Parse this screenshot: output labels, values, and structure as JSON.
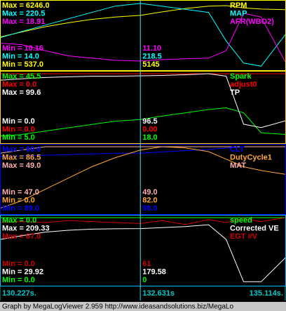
{
  "chart_data": [
    {
      "type": "line",
      "border_color": "#ffff00",
      "x": [
        130.227,
        130.6,
        131.0,
        131.4,
        131.8,
        132.2,
        132.631,
        133.0,
        133.4,
        133.8,
        134.1,
        134.4,
        134.7,
        135.114
      ],
      "series": [
        {
          "name": "RPM",
          "color": "#ffff00",
          "max": 6246.0,
          "min": 537.0,
          "max_label": "Max = 6246.0",
          "min_label": "Min = 537.0",
          "cursor_label": "5145",
          "values": [
            3250,
            3700,
            4150,
            4500,
            4800,
            5000,
            5145,
            5450,
            5750,
            5950,
            6000,
            5800,
            5700,
            5650
          ]
        },
        {
          "name": "MAP",
          "color": "#00ffff",
          "max": 220.5,
          "min": 14.0,
          "max_label": "Max = 220.5",
          "min_label": "Min = 14.0",
          "cursor_label": "218.5",
          "values": [
            110,
            130,
            150,
            170,
            190,
            210,
            218.5,
            210,
            200,
            190,
            100,
            30,
            20,
            120
          ]
        },
        {
          "name": "AFR(WBO2)",
          "color": "#ff00ff",
          "max": 18.91,
          "min": 10.16,
          "max_label": "Max = 18.91",
          "min_label": "Min = 10.16",
          "cursor_label": "11.10",
          "values": [
            13.5,
            13.3,
            12.5,
            11.8,
            11.5,
            11.2,
            11.1,
            11.3,
            11.4,
            11.5,
            12.5,
            17.5,
            17.0,
            11.0
          ]
        }
      ]
    },
    {
      "type": "line",
      "border_color": "#ffd000",
      "x": [
        130.227,
        130.6,
        131.0,
        131.4,
        131.8,
        132.2,
        132.631,
        133.0,
        133.4,
        133.8,
        134.1,
        134.4,
        134.7,
        135.114
      ],
      "series": [
        {
          "name": "Spark",
          "color": "#00ff00",
          "max": 45.5,
          "min": 5.0,
          "max_label": "Max = 45.5",
          "min_label": "Min = 5.0",
          "cursor_label": "18.0",
          "values": [
            8,
            9,
            11,
            13,
            15,
            17,
            18.0,
            20,
            22,
            24,
            25,
            22,
            10,
            9
          ]
        },
        {
          "name": "adjust0",
          "color": "#ff0000",
          "max": 0.0,
          "min": 0.0,
          "max_label": "Max = 0.0",
          "min_label": "Min = 0.0",
          "cursor_label": "0.00",
          "values": [
            0,
            0,
            0,
            0,
            0,
            0,
            0,
            0,
            0,
            0,
            0,
            0,
            0,
            0
          ]
        },
        {
          "name": "TP",
          "color": "#ffffff",
          "max": 99.6,
          "min": 0.0,
          "max_label": "Max = 99.6",
          "min_label": "Min = 0.0",
          "cursor_label": "96.5",
          "values": [
            90,
            92,
            94,
            95,
            96,
            96,
            96.5,
            97,
            98,
            99.6,
            96,
            25,
            20,
            30
          ]
        }
      ]
    },
    {
      "type": "line",
      "border_color": "#0000ff",
      "x": [
        130.227,
        130.6,
        131.0,
        131.4,
        131.8,
        132.2,
        132.631,
        133.0,
        133.4,
        133.8,
        134.1,
        134.4,
        134.7,
        135.114
      ],
      "series": [
        {
          "name": "CLT",
          "color": "#0000ff",
          "max": 99.0,
          "min": 89.0,
          "max_label": "Max = 99.0",
          "min_label": "Min = 89.0",
          "cursor_label": "98.0",
          "values": [
            97.5,
            97.6,
            97.7,
            97.8,
            97.9,
            98,
            98.0,
            98.2,
            98.4,
            98.6,
            98.8,
            99,
            99,
            99
          ]
        },
        {
          "name": "DutyCycle1",
          "color": "#ffa830",
          "max": 86.5,
          "min": 0.0,
          "max_label": "Max = 86.5",
          "min_label": "Min = 0.0",
          "cursor_label": "82.0",
          "values": [
            5,
            15,
            30,
            45,
            60,
            72,
            82.0,
            86.5,
            85,
            80,
            70,
            60,
            55,
            50
          ]
        },
        {
          "name": "MAT",
          "color": "#ffb0b0",
          "max": 49.0,
          "min": 47.0,
          "max_label": "Max = 49.0",
          "min_label": "Min = 47.0",
          "cursor_label": "49.0",
          "values": [
            48.8,
            48.9,
            49,
            49,
            49,
            49,
            49.0,
            49,
            49,
            49,
            49,
            49,
            49,
            49
          ]
        }
      ]
    },
    {
      "type": "line",
      "border_color": "#00c0ff",
      "x": [
        130.227,
        130.6,
        131.0,
        131.4,
        131.8,
        132.2,
        132.631,
        133.0,
        133.4,
        133.8,
        134.1,
        134.4,
        134.7,
        135.114
      ],
      "series": [
        {
          "name": "speed",
          "color": "#00ff00",
          "max": 0.0,
          "min": 0.0,
          "max_label": "Max = 0.0",
          "min_label": "Min = 0.0",
          "cursor_label": "0",
          "values": [
            0,
            0,
            0,
            0,
            0,
            0,
            0,
            0,
            0,
            0,
            0,
            0,
            0,
            0
          ]
        },
        {
          "name": "Corrected VE",
          "color": "#ffffff",
          "max": 209.33,
          "min": 29.92,
          "max_label": "Max = 209.33",
          "min_label": "Min = 29.92",
          "cursor_label": "179.58",
          "values": [
            150,
            160,
            170,
            175,
            178,
            179,
            179.58,
            182,
            185,
            190,
            150,
            35,
            35,
            100
          ]
        },
        {
          "name": "EGT #V",
          "color": "#d00000",
          "max": 67.0,
          "min": 0.0,
          "max_label": "Max = 67.0",
          "min_label": "Min = 0.0",
          "cursor_label": "61",
          "values": [
            62,
            63,
            62,
            64,
            63,
            62,
            61,
            64,
            60,
            65,
            62,
            66,
            63,
            67
          ]
        }
      ]
    }
  ],
  "time_axis": {
    "xlim": [
      130.227,
      135.114
    ],
    "xticks": [
      {
        "value": 130.227,
        "label": "130.227s."
      },
      {
        "value": 132.631,
        "label": "132.631s"
      },
      {
        "value": 135.114,
        "label": "135.114s."
      }
    ]
  },
  "footer": "Graph by MegaLogViewer 2.959 http://www.ideasandsolutions.biz/MegaLo"
}
